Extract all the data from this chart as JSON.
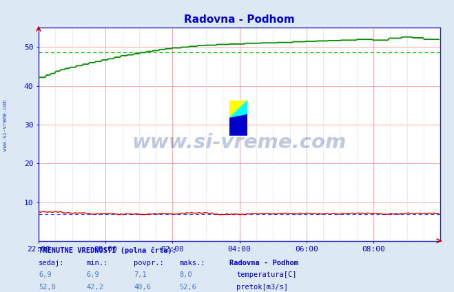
{
  "title": "Radovna - Podhom",
  "title_color": "#0000cc",
  "bg_color": "#dce9f5",
  "plot_bg_color": "#ffffff",
  "grid_color_h": "#ff9999",
  "grid_color_v": "#cccccc",
  "ylim": [
    0,
    55
  ],
  "xlim_start": 0,
  "xlim_end": 252,
  "ytick_vals": [
    10,
    20,
    30,
    40,
    50
  ],
  "xtick_positions": [
    0,
    42,
    84,
    126,
    168,
    210
  ],
  "xtick_labels": [
    "22:00",
    "00:00",
    "02:00",
    "04:00",
    "06:00",
    "08:00"
  ],
  "watermark": "www.si-vreme.com",
  "watermark_color": "#1a3f8f",
  "watermark_alpha": 0.28,
  "sidebar_text": "www.si-vreme.com",
  "sidebar_color": "#3355aa",
  "temp_color": "#cc0000",
  "flow_color": "#008800",
  "temp_dashed_color": "#4444ff",
  "flow_dashed_color": "#00bb00",
  "temp_dashed_y": 6.9,
  "flow_dashed_y": 48.6,
  "footer_bg": "#dce9f5",
  "footer_title": "TRENUTNE VREDNOSTI (polna črta):",
  "footer_headers": [
    "sedaj:",
    "min.:",
    "povpr.:",
    "maks.:"
  ],
  "footer_station": "Radovna - Podhom",
  "footer_temp_vals": [
    "6,9",
    "6,9",
    "7,1",
    "8,0"
  ],
  "footer_flow_vals": [
    "52,0",
    "42,2",
    "48,6",
    "52,6"
  ],
  "footer_temp_label": "temperatura[C]",
  "footer_flow_label": "pretok[m3/s]",
  "temp_box_color": "#cc0000",
  "flow_box_color": "#00bb00"
}
